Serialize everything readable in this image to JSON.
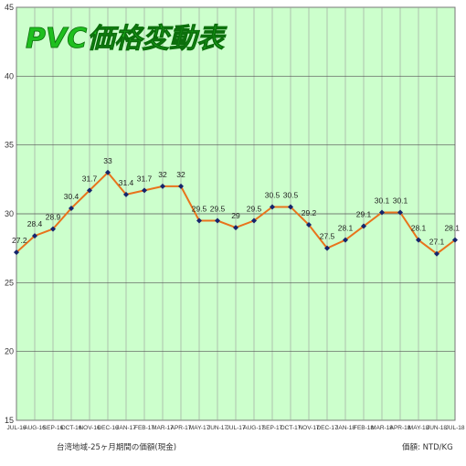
{
  "chart_data": {
    "type": "line",
    "title": "PVC価格変動表",
    "categories": [
      "JUL-16",
      "AUG-16",
      "SEP-16",
      "OCT-16",
      "NOV-16",
      "DEC-16",
      "JAN-17",
      "FEB-17",
      "MAR-17",
      "APR-17",
      "MAY-17",
      "JUN-17",
      "JUL-17",
      "AUG-17",
      "SEP-17",
      "OCT-17",
      "NOV-17",
      "DEC-17",
      "JAN-18",
      "FEB-18",
      "MAR-18",
      "APR-18",
      "MAY-18",
      "JUN-18",
      "JUL-18"
    ],
    "series": [
      {
        "values": [
          27.2,
          28.4,
          28.9,
          30.4,
          31.7,
          33,
          31.4,
          31.7,
          32,
          32,
          29.5,
          29.5,
          29,
          29.5,
          30.5,
          30.5,
          29.2,
          27.5,
          28.1,
          29.1,
          30.1,
          30.1,
          28.1,
          27.1,
          28.1
        ]
      }
    ],
    "ylim": [
      15,
      45
    ],
    "yticks": [
      15,
      20,
      25,
      30,
      35,
      40,
      45
    ],
    "xlabel": "",
    "ylabel": "",
    "grid": true,
    "colors": {
      "line": "#e8731c",
      "marker": "#16246b",
      "plot_bg": "#ccffcc",
      "grid": "#9a9a9a",
      "title": "#1fbf1f"
    }
  },
  "footer": {
    "left_note": "台湾地域-25ヶ月期間の価額(現金)",
    "unit": "価額: NTD/KG"
  }
}
